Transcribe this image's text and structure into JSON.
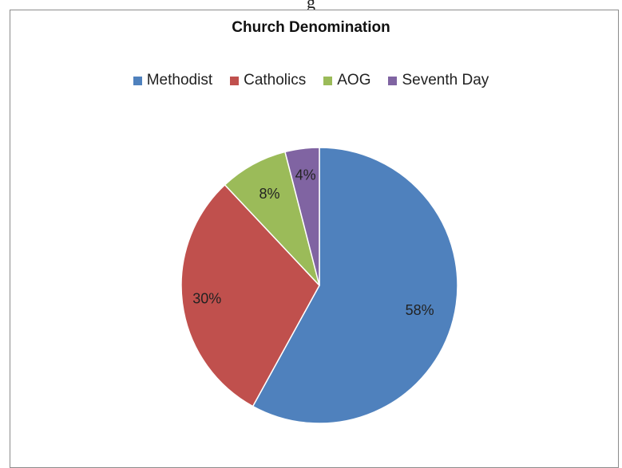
{
  "top_fragment": "g",
  "chart_data": {
    "type": "pie",
    "title": "Church Denomination",
    "legend_position": "top",
    "categories": [
      "Methodist",
      "Catholics",
      "AOG",
      "Seventh Day"
    ],
    "values": [
      58,
      30,
      8,
      4
    ],
    "value_labels": [
      "58%",
      "30%",
      "8%",
      "4%"
    ],
    "colors": [
      "#4f81bd",
      "#c0504d",
      "#9bbb59",
      "#8064a2"
    ]
  }
}
